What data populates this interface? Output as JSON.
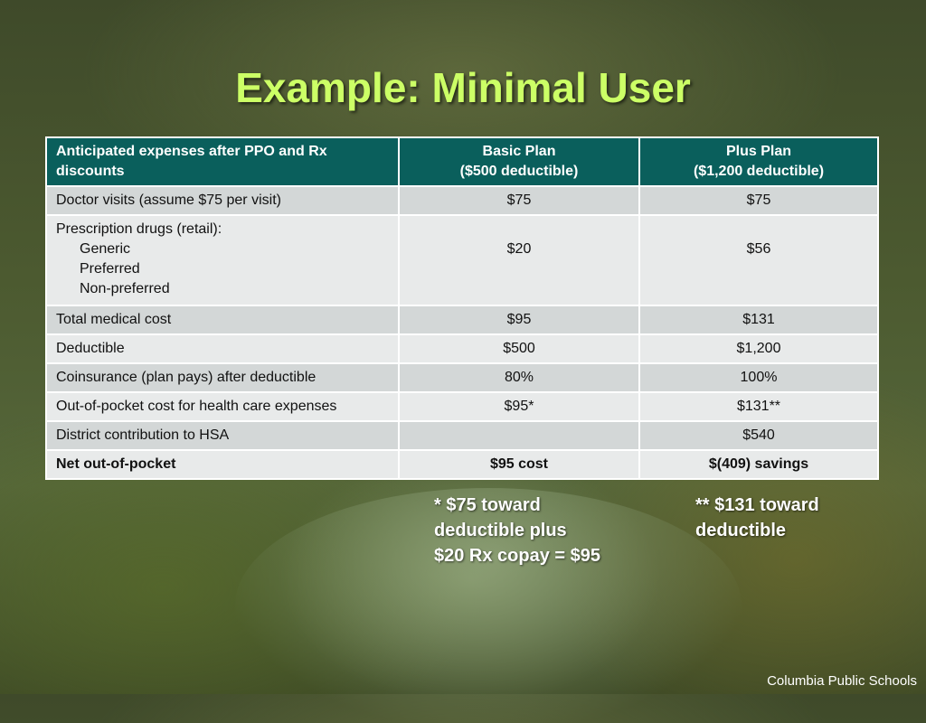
{
  "title": "Example: Minimal User",
  "table": {
    "headers": [
      "Anticipated expenses after PPO and Rx discounts",
      [
        "Basic Plan",
        "($500 deductible)"
      ],
      [
        "Plus Plan",
        "($1,200 deductible)"
      ]
    ],
    "rows": [
      {
        "label": "Doctor visits (assume $75 per visit)",
        "basic": "$75",
        "plus": "$75"
      },
      {
        "label": "Prescription drugs (retail):",
        "sub": [
          "Generic",
          "Preferred",
          "Non-preferred"
        ],
        "basic": "$20",
        "plus": "$56"
      },
      {
        "label": "Total medical cost",
        "basic": "$95",
        "plus": "$131"
      },
      {
        "label": "Deductible",
        "basic": "$500",
        "plus": "$1,200"
      },
      {
        "label": "Coinsurance (plan pays) after deductible",
        "basic": "80%",
        "plus": "100%"
      },
      {
        "label": "Out-of-pocket cost for health care expenses",
        "basic": "$95*",
        "plus": "$131**"
      },
      {
        "label": "District contribution to HSA",
        "basic": "",
        "plus": "$540"
      },
      {
        "label": "Net out-of-pocket",
        "basic": "$95 cost",
        "plus": "$(409) savings"
      }
    ]
  },
  "notes": {
    "basic": [
      "* $75 toward",
      "deductible plus",
      "$20 Rx copay = $95"
    ],
    "plus": [
      "** $131 toward",
      "deductible"
    ]
  },
  "footer": "Columbia Public Schools",
  "colors": {
    "title": "#ccff66",
    "header": "#0a5f5c"
  }
}
